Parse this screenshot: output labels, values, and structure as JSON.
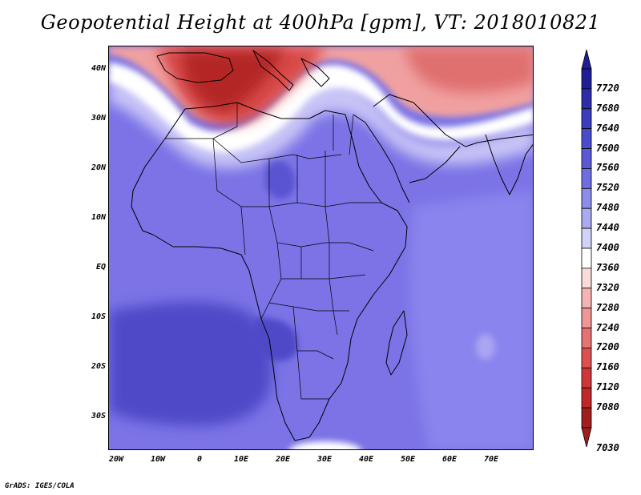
{
  "title": "Geopotential Height at 400hPa [gpm], VT: 2018010821",
  "credit": "GrADS: IGES/COLA",
  "map": {
    "lat_ticks": [
      "40N",
      "30N",
      "20N",
      "10N",
      "EQ",
      "10S",
      "20S",
      "30S"
    ],
    "lon_ticks": [
      "20W",
      "10W",
      "0",
      "10E",
      "20E",
      "30E",
      "40E",
      "50E",
      "60E",
      "70E"
    ],
    "lat_range": [
      -37,
      44
    ],
    "lon_range": [
      -22,
      80
    ]
  },
  "colorbar": {
    "levels": [
      "7720",
      "7680",
      "7640",
      "7600",
      "7560",
      "7520",
      "7480",
      "7440",
      "7400",
      "7360",
      "7320",
      "7280",
      "7240",
      "7200",
      "7160",
      "7120",
      "7080",
      "7030"
    ],
    "colors": [
      "#1e1e96",
      "#2d2daa",
      "#3c3cbe",
      "#4b4bcd",
      "#5a5ad7",
      "#6e6ee1",
      "#8c8ceb",
      "#aaaaf0",
      "#d2d2f8",
      "#ffffff",
      "#fadcdc",
      "#f5b4b4",
      "#ef9696",
      "#e67373",
      "#dc5050",
      "#cd3737",
      "#be2828",
      "#a01e1e"
    ]
  }
}
